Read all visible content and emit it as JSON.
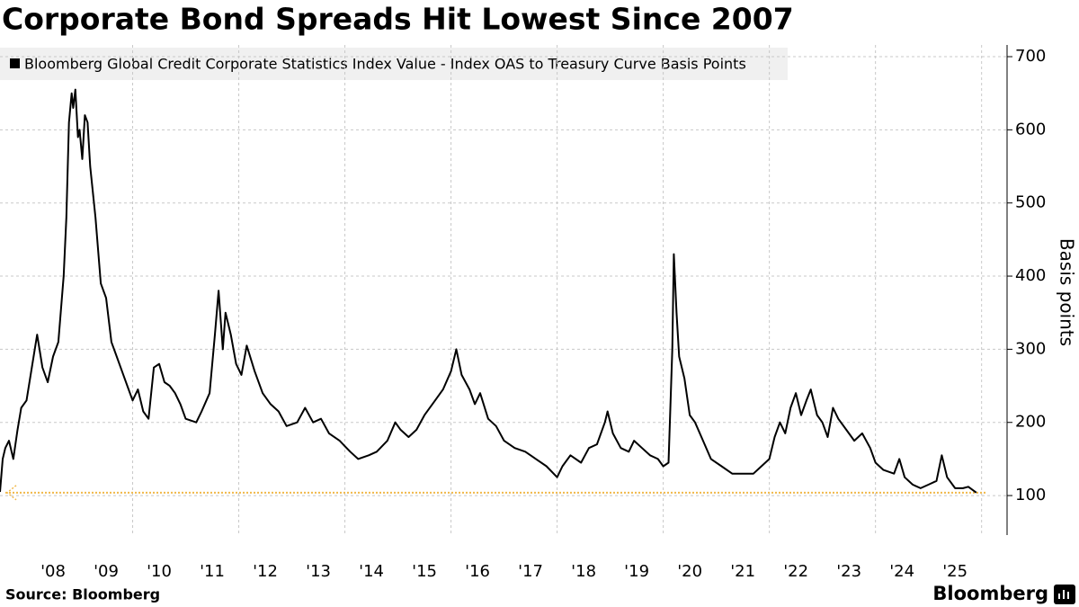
{
  "chart_data": {
    "type": "line",
    "title": "Corporate Bond Spreads Hit Lowest Since 2007",
    "y_label": "Basis points",
    "source": "Source: Bloomberg",
    "brand": "Bloomberg",
    "x": [
      2007.5,
      2007.55,
      2007.6,
      2007.67,
      2007.75,
      2007.83,
      2007.9,
      2008.0,
      2008.1,
      2008.2,
      2008.3,
      2008.4,
      2008.5,
      2008.6,
      2008.7,
      2008.75,
      2008.8,
      2008.85,
      2008.88,
      2008.92,
      2008.97,
      2009.0,
      2009.05,
      2009.1,
      2009.15,
      2009.2,
      2009.3,
      2009.4,
      2009.5,
      2009.6,
      2009.7,
      2009.8,
      2009.9,
      2010.0,
      2010.1,
      2010.2,
      2010.3,
      2010.4,
      2010.5,
      2010.6,
      2010.7,
      2010.8,
      2010.9,
      2011.0,
      2011.2,
      2011.3,
      2011.45,
      2011.55,
      2011.62,
      2011.7,
      2011.75,
      2011.85,
      2011.95,
      2012.05,
      2012.15,
      2012.3,
      2012.45,
      2012.6,
      2012.75,
      2012.9,
      2013.1,
      2013.25,
      2013.4,
      2013.55,
      2013.7,
      2013.9,
      2014.1,
      2014.25,
      2014.45,
      2014.6,
      2014.8,
      2014.95,
      2015.05,
      2015.2,
      2015.35,
      2015.5,
      2015.7,
      2015.85,
      2016.0,
      2016.1,
      2016.2,
      2016.35,
      2016.45,
      2016.55,
      2016.7,
      2016.85,
      2017.0,
      2017.2,
      2017.4,
      2017.6,
      2017.8,
      2018.0,
      2018.1,
      2018.25,
      2018.45,
      2018.6,
      2018.75,
      2018.9,
      2018.95,
      2019.05,
      2019.2,
      2019.35,
      2019.45,
      2019.6,
      2019.75,
      2019.9,
      2020.0,
      2020.1,
      2020.17,
      2020.2,
      2020.25,
      2020.3,
      2020.4,
      2020.5,
      2020.6,
      2020.75,
      2020.9,
      2021.1,
      2021.3,
      2021.5,
      2021.7,
      2021.85,
      2022.0,
      2022.1,
      2022.2,
      2022.3,
      2022.4,
      2022.5,
      2022.6,
      2022.7,
      2022.78,
      2022.9,
      2023.0,
      2023.1,
      2023.2,
      2023.3,
      2023.45,
      2023.6,
      2023.75,
      2023.9,
      2024.0,
      2024.15,
      2024.35,
      2024.45,
      2024.55,
      2024.7,
      2024.85,
      2025.0,
      2025.15,
      2025.25,
      2025.35,
      2025.5,
      2025.65,
      2025.75,
      2025.9
    ],
    "series": [
      {
        "name": "Bloomberg Global Credit Corporate Statistics Index Value - Index OAS to Treasury Curve Basis Points",
        "color": "#000000",
        "values": [
          105,
          150,
          165,
          175,
          150,
          190,
          220,
          230,
          275,
          320,
          275,
          255,
          290,
          310,
          400,
          480,
          610,
          650,
          630,
          655,
          590,
          600,
          560,
          620,
          610,
          550,
          480,
          390,
          370,
          310,
          290,
          270,
          250,
          230,
          245,
          215,
          205,
          275,
          280,
          255,
          250,
          240,
          225,
          205,
          200,
          215,
          240,
          320,
          380,
          300,
          350,
          320,
          280,
          265,
          305,
          270,
          240,
          225,
          215,
          195,
          200,
          220,
          200,
          205,
          185,
          175,
          160,
          150,
          155,
          160,
          175,
          200,
          190,
          180,
          190,
          210,
          230,
          245,
          270,
          300,
          265,
          245,
          225,
          240,
          205,
          195,
          175,
          165,
          160,
          150,
          140,
          125,
          140,
          155,
          145,
          165,
          170,
          200,
          215,
          185,
          165,
          160,
          175,
          165,
          155,
          150,
          140,
          145,
          300,
          430,
          350,
          290,
          260,
          210,
          200,
          175,
          150,
          140,
          130,
          130,
          130,
          140,
          150,
          180,
          200,
          185,
          220,
          240,
          210,
          230,
          245,
          210,
          200,
          180,
          220,
          205,
          190,
          175,
          185,
          165,
          145,
          135,
          130,
          150,
          125,
          115,
          110,
          115,
          120,
          155,
          125,
          110,
          110,
          112,
          104
        ]
      }
    ],
    "reference_line": {
      "value": 104,
      "color": "#f0b84a"
    },
    "xlim": [
      2007.5,
      2026.48
    ],
    "ylim": [
      46,
      716
    ],
    "yticks": [
      100,
      200,
      300,
      400,
      500,
      600,
      700
    ],
    "xticks": [
      {
        "value": 2008.5,
        "label": "'08"
      },
      {
        "value": 2009.5,
        "label": "'09"
      },
      {
        "value": 2010.5,
        "label": "'10"
      },
      {
        "value": 2011.5,
        "label": "'11"
      },
      {
        "value": 2012.5,
        "label": "'12"
      },
      {
        "value": 2013.5,
        "label": "'13"
      },
      {
        "value": 2014.5,
        "label": "'14"
      },
      {
        "value": 2015.5,
        "label": "'15"
      },
      {
        "value": 2016.5,
        "label": "'16"
      },
      {
        "value": 2017.5,
        "label": "'17"
      },
      {
        "value": 2018.5,
        "label": "'18"
      },
      {
        "value": 2019.5,
        "label": "'19"
      },
      {
        "value": 2020.5,
        "label": "'20"
      },
      {
        "value": 2021.5,
        "label": "'21"
      },
      {
        "value": 2022.5,
        "label": "'22"
      },
      {
        "value": 2023.5,
        "label": "'23"
      },
      {
        "value": 2024.5,
        "label": "'24"
      },
      {
        "value": 2025.5,
        "label": "'25"
      }
    ],
    "xgrid": [
      2010,
      2012,
      2014,
      2016,
      2018,
      2020,
      2022,
      2024,
      2026
    ],
    "grid": true
  }
}
